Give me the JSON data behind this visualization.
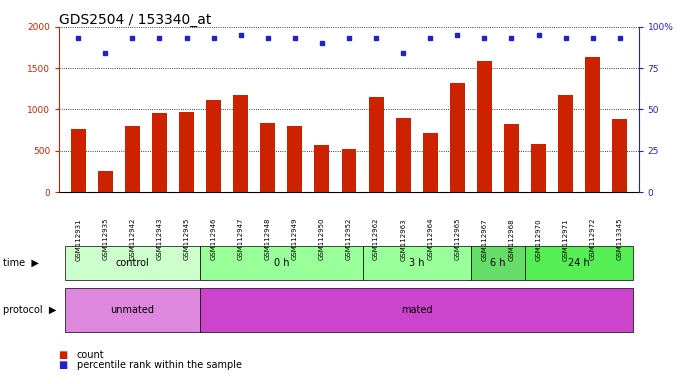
{
  "title": "GDS2504 / 153340_at",
  "samples": [
    "GSM112931",
    "GSM112935",
    "GSM112942",
    "GSM112943",
    "GSM112945",
    "GSM112946",
    "GSM112947",
    "GSM112948",
    "GSM112949",
    "GSM112950",
    "GSM112952",
    "GSM112962",
    "GSM112963",
    "GSM112964",
    "GSM112965",
    "GSM112967",
    "GSM112968",
    "GSM112970",
    "GSM112971",
    "GSM112972",
    "GSM113345"
  ],
  "counts": [
    760,
    255,
    800,
    960,
    970,
    1110,
    1175,
    840,
    800,
    570,
    520,
    1150,
    900,
    720,
    1320,
    1590,
    820,
    580,
    1170,
    1640,
    880
  ],
  "percentile_ranks": [
    93,
    84,
    93,
    93,
    93,
    93,
    95,
    93,
    93,
    90,
    93,
    93,
    84,
    93,
    95,
    93,
    93,
    95,
    93,
    93,
    93
  ],
  "bar_color": "#cc2200",
  "dot_color": "#2222cc",
  "ylim_left": [
    0,
    2000
  ],
  "ylim_right": [
    0,
    100
  ],
  "yticks_left": [
    0,
    500,
    1000,
    1500,
    2000
  ],
  "yticks_right": [
    0,
    25,
    50,
    75,
    100
  ],
  "time_groups": [
    {
      "label": "control",
      "start": 0,
      "end": 5,
      "color": "#ccffcc"
    },
    {
      "label": "0 h",
      "start": 5,
      "end": 11,
      "color": "#99ff99"
    },
    {
      "label": "3 h",
      "start": 11,
      "end": 15,
      "color": "#99ff99"
    },
    {
      "label": "6 h",
      "start": 15,
      "end": 17,
      "color": "#66dd66"
    },
    {
      "label": "24 h",
      "start": 17,
      "end": 21,
      "color": "#55ee55"
    }
  ],
  "protocol_groups": [
    {
      "label": "unmated",
      "start": 0,
      "end": 5,
      "color": "#dd88dd"
    },
    {
      "label": "mated",
      "start": 5,
      "end": 21,
      "color": "#cc44cc"
    }
  ],
  "legend_count_label": "count",
  "legend_pct_label": "percentile rank within the sample",
  "background_color": "#ffffff",
  "title_fontsize": 10,
  "tick_fontsize": 6.5,
  "bar_width": 0.55
}
